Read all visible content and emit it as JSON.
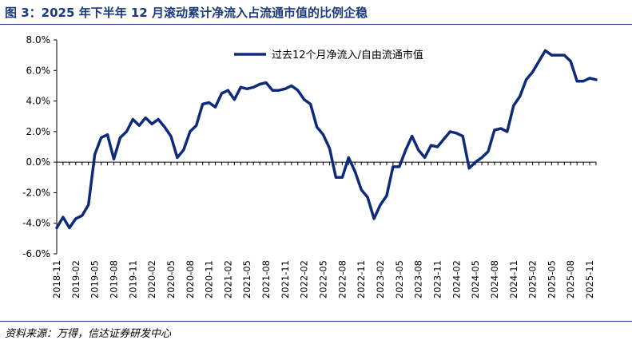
{
  "header": {
    "title": "图 3：2025 年下半年 12 月滚动累计净流入占流通市值的比例企稳"
  },
  "footer": {
    "source": "资料来源：万得，信达证券研发中心"
  },
  "chart_data": {
    "type": "line",
    "title": "",
    "xlabel": "",
    "ylabel": "",
    "ylim": [
      -6,
      8
    ],
    "yticks": [
      -6,
      -4,
      -2,
      0,
      2,
      4,
      6,
      8
    ],
    "ytick_labels": [
      "-6.0%",
      "-4.0%",
      "-2.0%",
      "0.0%",
      "2.0%",
      "4.0%",
      "6.0%",
      "8.0%"
    ],
    "grid": false,
    "legend_position": "top-right",
    "color": "#0d2b7a",
    "x_tick_labels": [
      "2018-11",
      "2019-02",
      "2019-05",
      "2019-08",
      "2019-11",
      "2020-02",
      "2020-05",
      "2020-08",
      "2020-11",
      "2021-02",
      "2021-05",
      "2021-08",
      "2021-11",
      "2022-02",
      "2022-05",
      "2022-08",
      "2022-11",
      "2023-02",
      "2023-05",
      "2023-08",
      "2023-11",
      "2024-02",
      "2024-05",
      "2024-08",
      "2024-11",
      "2025-02",
      "2025-05",
      "2025-08",
      "2025-11"
    ],
    "series": [
      {
        "name": "过去12个月净流入/自由流通市值",
        "values": [
          -4.3,
          -3.6,
          -4.3,
          -3.7,
          -3.5,
          -2.8,
          0.5,
          1.6,
          1.8,
          0.2,
          1.6,
          2.0,
          2.8,
          2.4,
          2.9,
          2.5,
          2.8,
          2.3,
          1.7,
          0.3,
          0.8,
          2.0,
          2.4,
          3.8,
          3.9,
          3.6,
          4.5,
          4.7,
          4.1,
          4.9,
          4.8,
          4.9,
          5.1,
          5.2,
          4.7,
          4.7,
          4.8,
          5.0,
          4.7,
          4.1,
          3.8,
          2.3,
          1.8,
          0.9,
          -1.0,
          -1.0,
          0.3,
          -0.6,
          -1.8,
          -2.3,
          -3.7,
          -2.8,
          -2.2,
          -0.3,
          -0.3,
          0.8,
          1.7,
          0.8,
          0.3,
          1.1,
          1.0,
          1.5,
          2.0,
          1.9,
          1.7,
          -0.4,
          0.0,
          0.3,
          0.7,
          2.1,
          2.2,
          2.0,
          3.7,
          4.3,
          5.4,
          5.9,
          6.6,
          7.3,
          7.0,
          7.0,
          7.0,
          6.6,
          5.3,
          5.3,
          5.5,
          5.4
        ]
      }
    ]
  }
}
